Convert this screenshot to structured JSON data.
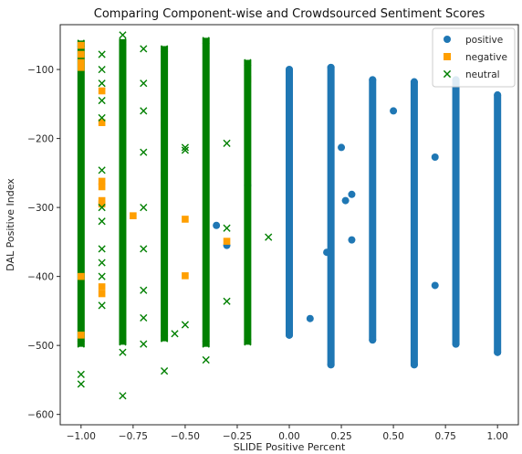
{
  "chart_data": {
    "type": "scatter",
    "title": "Comparing Component-wise and Crowdsourced Sentiment Scores",
    "xlabel": "SLIDE Positive Percent",
    "ylabel": "DAL Positive Index",
    "xlim": [
      -1.1,
      1.1
    ],
    "ylim": [
      -615,
      -35
    ],
    "xticks": [
      -1.0,
      -0.75,
      -0.5,
      -0.25,
      0.0,
      0.25,
      0.5,
      0.75,
      1.0
    ],
    "xtick_labels": [
      "−1.00",
      "−0.75",
      "−0.50",
      "−0.25",
      "0.00",
      "0.25",
      "0.50",
      "0.75",
      "1.00"
    ],
    "yticks": [
      -100,
      -200,
      -300,
      -400,
      -500,
      -600
    ],
    "ytick_labels": [
      "−100",
      "−200",
      "−300",
      "−400",
      "−500",
      "−600"
    ],
    "grid": false,
    "legend_position": "top-right",
    "series": [
      {
        "name": "positive",
        "marker": "circle",
        "color": "#1f77b4",
        "columns": [
          {
            "x": 0.0,
            "y_min": -485,
            "y_max": -100
          },
          {
            "x": 0.2,
            "y_min": -528,
            "y_max": -97
          },
          {
            "x": 0.4,
            "y_min": -492,
            "y_max": -115
          },
          {
            "x": 0.6,
            "y_min": -528,
            "y_max": -118
          },
          {
            "x": 0.8,
            "y_min": -498,
            "y_max": -115
          },
          {
            "x": 1.0,
            "y_min": -510,
            "y_max": -137
          }
        ],
        "points": [
          {
            "x": -0.35,
            "y": -326
          },
          {
            "x": -0.3,
            "y": -355
          },
          {
            "x": -0.2,
            "y": -268
          },
          {
            "x": 0.1,
            "y": -461
          },
          {
            "x": 0.18,
            "y": -365
          },
          {
            "x": 0.25,
            "y": -213
          },
          {
            "x": 0.27,
            "y": -290
          },
          {
            "x": 0.3,
            "y": -281
          },
          {
            "x": 0.3,
            "y": -347
          },
          {
            "x": 0.5,
            "y": -160
          },
          {
            "x": 0.7,
            "y": -227
          },
          {
            "x": 0.7,
            "y": -413
          }
        ]
      },
      {
        "name": "negative",
        "marker": "square",
        "color": "#ff9f00",
        "points": [
          {
            "x": -1.0,
            "y": -65
          },
          {
            "x": -1.0,
            "y": -78
          },
          {
            "x": -1.0,
            "y": -90
          },
          {
            "x": -1.0,
            "y": -97
          },
          {
            "x": -1.0,
            "y": -400
          },
          {
            "x": -1.0,
            "y": -485
          },
          {
            "x": -0.9,
            "y": -131
          },
          {
            "x": -0.9,
            "y": -177
          },
          {
            "x": -0.9,
            "y": -262
          },
          {
            "x": -0.9,
            "y": -270
          },
          {
            "x": -0.9,
            "y": -290
          },
          {
            "x": -0.9,
            "y": -295
          },
          {
            "x": -0.9,
            "y": -415
          },
          {
            "x": -0.9,
            "y": -425
          },
          {
            "x": -0.8,
            "y": -140
          },
          {
            "x": -0.8,
            "y": -182
          },
          {
            "x": -0.8,
            "y": -425
          },
          {
            "x": -0.75,
            "y": -312
          },
          {
            "x": -0.6,
            "y": -163
          },
          {
            "x": -0.6,
            "y": -180
          },
          {
            "x": -0.6,
            "y": -253
          },
          {
            "x": -0.6,
            "y": -483
          },
          {
            "x": -0.5,
            "y": -317
          },
          {
            "x": -0.5,
            "y": -399
          },
          {
            "x": -0.3,
            "y": -349
          },
          {
            "x": -0.2,
            "y": -114
          }
        ]
      },
      {
        "name": "neutral",
        "marker": "x",
        "color": "#008000",
        "columns": [
          {
            "x": -1.0,
            "y_min": -498,
            "y_max": -62
          },
          {
            "x": -0.8,
            "y_min": -495,
            "y_max": -60
          },
          {
            "x": -0.6,
            "y_min": -490,
            "y_max": -70
          },
          {
            "x": -0.4,
            "y_min": -498,
            "y_max": -58
          },
          {
            "x": -0.2,
            "y_min": -495,
            "y_max": -90
          }
        ],
        "points": [
          {
            "x": -1.0,
            "y": -542
          },
          {
            "x": -1.0,
            "y": -556
          },
          {
            "x": -0.9,
            "y": -78
          },
          {
            "x": -0.9,
            "y": -100
          },
          {
            "x": -0.9,
            "y": -120
          },
          {
            "x": -0.9,
            "y": -145
          },
          {
            "x": -0.9,
            "y": -170
          },
          {
            "x": -0.9,
            "y": -246
          },
          {
            "x": -0.9,
            "y": -300
          },
          {
            "x": -0.9,
            "y": -320
          },
          {
            "x": -0.9,
            "y": -360
          },
          {
            "x": -0.9,
            "y": -380
          },
          {
            "x": -0.9,
            "y": -400
          },
          {
            "x": -0.9,
            "y": -442
          },
          {
            "x": -0.8,
            "y": -50
          },
          {
            "x": -0.8,
            "y": -510
          },
          {
            "x": -0.8,
            "y": -573
          },
          {
            "x": -0.7,
            "y": -70
          },
          {
            "x": -0.7,
            "y": -120
          },
          {
            "x": -0.7,
            "y": -160
          },
          {
            "x": -0.7,
            "y": -220
          },
          {
            "x": -0.7,
            "y": -300
          },
          {
            "x": -0.7,
            "y": -360
          },
          {
            "x": -0.7,
            "y": -420
          },
          {
            "x": -0.7,
            "y": -460
          },
          {
            "x": -0.7,
            "y": -498
          },
          {
            "x": -0.6,
            "y": -537
          },
          {
            "x": -0.55,
            "y": -483
          },
          {
            "x": -0.5,
            "y": -213
          },
          {
            "x": -0.5,
            "y": -217
          },
          {
            "x": -0.5,
            "y": -470
          },
          {
            "x": -0.4,
            "y": -521
          },
          {
            "x": -0.3,
            "y": -207
          },
          {
            "x": -0.3,
            "y": -330
          },
          {
            "x": -0.3,
            "y": -436
          },
          {
            "x": -0.1,
            "y": -343
          }
        ]
      }
    ]
  }
}
